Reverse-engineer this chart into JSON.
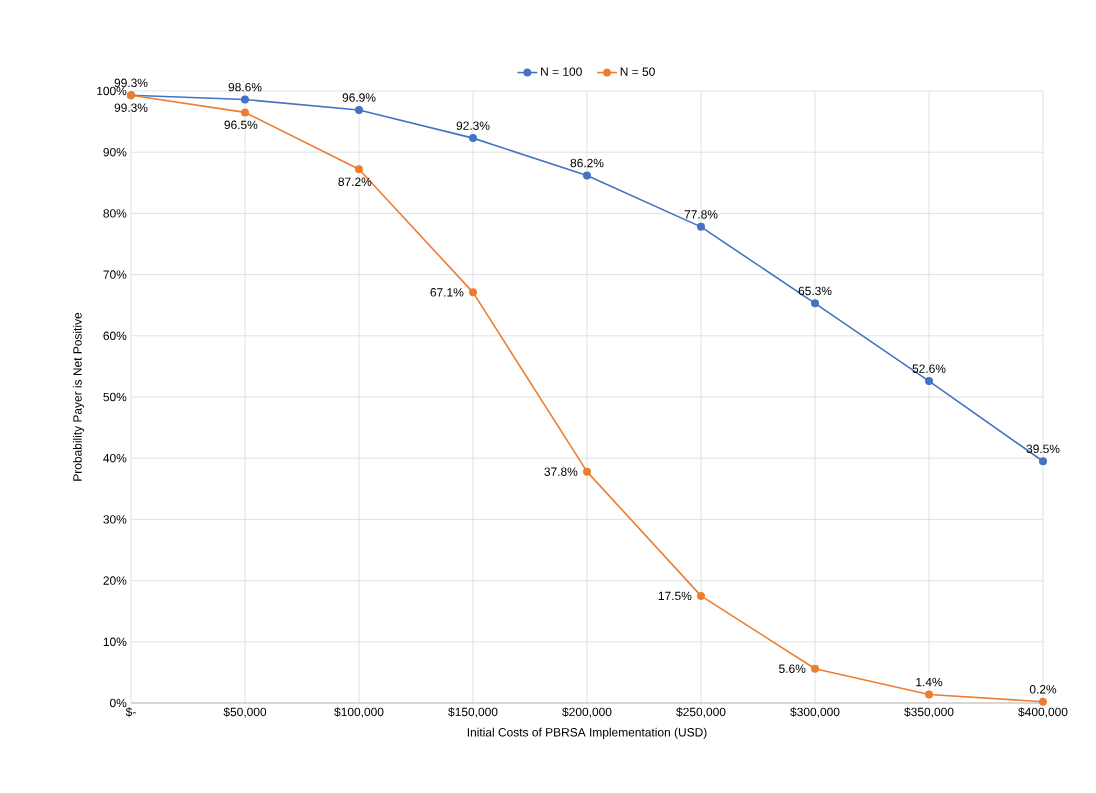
{
  "chart_data": {
    "type": "line",
    "xlabel": "Initial Costs of PBRSA Implementation (USD)",
    "ylabel": "Probability Payer is Net Positive",
    "x": [
      0,
      50000,
      100000,
      150000,
      200000,
      250000,
      300000,
      350000,
      400000
    ],
    "series": [
      {
        "name": "N = 100",
        "color": "#4472c4",
        "values": [
          99.3,
          98.6,
          96.9,
          92.3,
          86.2,
          77.8,
          65.3,
          52.6,
          39.5
        ],
        "value_labels": [
          "99.3%",
          "98.6%",
          "96.9%",
          "92.3%",
          "86.2%",
          "77.8%",
          "65.3%",
          "52.6%",
          "39.5%"
        ]
      },
      {
        "name": "N = 50",
        "color": "#ed7d31",
        "values": [
          99.3,
          96.5,
          87.2,
          67.1,
          37.8,
          17.5,
          5.6,
          1.4,
          0.2
        ],
        "value_labels": [
          "99.3%",
          "96.5%",
          "87.2%",
          "67.1%",
          "37.8%",
          "17.5%",
          "5.6%",
          "1.4%",
          "0.2%"
        ]
      }
    ],
    "xlim": [
      0,
      400000
    ],
    "xticks": [
      {
        "value": 0,
        "label": "$-"
      },
      {
        "value": 50000,
        "label": "$50,000"
      },
      {
        "value": 100000,
        "label": "$100,000"
      },
      {
        "value": 150000,
        "label": "$150,000"
      },
      {
        "value": 200000,
        "label": "$200,000"
      },
      {
        "value": 250000,
        "label": "$250,000"
      },
      {
        "value": 300000,
        "label": "$300,000"
      },
      {
        "value": 350000,
        "label": "$350,000"
      },
      {
        "value": 400000,
        "label": "$400,000"
      }
    ],
    "ylim": [
      0,
      100
    ],
    "yticks": [
      {
        "value": 0,
        "label": "0%"
      },
      {
        "value": 10,
        "label": "10%"
      },
      {
        "value": 20,
        "label": "20%"
      },
      {
        "value": 30,
        "label": "30%"
      },
      {
        "value": 40,
        "label": "40%"
      },
      {
        "value": 50,
        "label": "50%"
      },
      {
        "value": 60,
        "label": "60%"
      },
      {
        "value": 70,
        "label": "70%"
      },
      {
        "value": 80,
        "label": "80%"
      },
      {
        "value": 90,
        "label": "90%"
      },
      {
        "value": 100,
        "label": "100%"
      }
    ],
    "grid": true,
    "legend": "top",
    "marker": "circle",
    "line_style": "solid"
  }
}
